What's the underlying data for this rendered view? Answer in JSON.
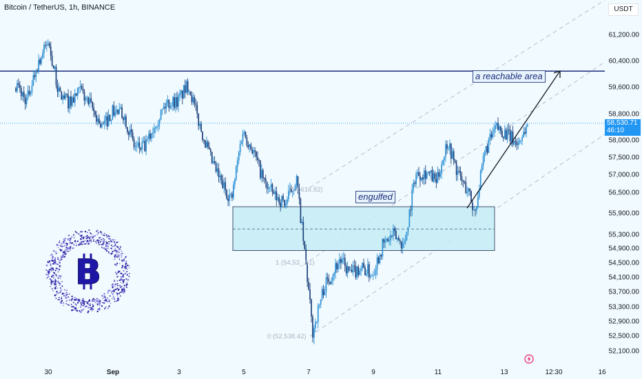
{
  "header": {
    "symbol_title": "Bitcoin / TetherUS, 1h, BINANCE",
    "currency": "USDT"
  },
  "price_axis": {
    "ticks": [
      "61,200.00",
      "60,400.00",
      "59,600.00",
      "58,800.00",
      "58,000.00",
      "57,500.00",
      "57,000.00",
      "56,500.00",
      "55,900.00",
      "55,300.00",
      "54,900.00",
      "54,500.00",
      "54,100.00",
      "53,700.00",
      "53,300.00",
      "52,900.00",
      "52,500.00",
      "52,100.00"
    ],
    "last_price": "58,530.71",
    "countdown": "46:10"
  },
  "time_axis": {
    "ticks": [
      "30",
      "Sep",
      "3",
      "5",
      "7",
      "9",
      "11",
      "13",
      "12:30",
      "16"
    ]
  },
  "annotations": {
    "reachable_area": "a reachable area",
    "engulfed": "engulfed",
    "fib_1618": "(54,616.82)",
    "fib_1": "1 (54,53_.51)",
    "fib_0": "0 (52,538.42)"
  },
  "colors": {
    "background": "#f1fafe",
    "candle": "#2a8fd4",
    "candle_dark": "#1b3f7a",
    "resistance_line": "#1a2b7a",
    "zone_fill": "#c5ecf6",
    "channel_line": "#b6bdc7",
    "last_price_tag": "#2196f3",
    "logo": "#2a1fa0"
  },
  "chart_data": {
    "type": "candlestick",
    "resistance_level": 60100,
    "demand_zone": {
      "low": 54850,
      "high": 56100,
      "mid": 55470
    },
    "last_price": 58530.71,
    "price_path": [
      {
        "t": "Aug 29 00:00",
        "p": 59700
      },
      {
        "t": "Aug 29 08:00",
        "p": 59200
      },
      {
        "t": "Aug 29 16:00",
        "p": 60300
      },
      {
        "t": "Aug 30 00:00",
        "p": 61000
      },
      {
        "t": "Aug 30 08:00",
        "p": 59400
      },
      {
        "t": "Aug 30 16:00",
        "p": 59150
      },
      {
        "t": "Aug 31 00:00",
        "p": 59500
      },
      {
        "t": "Aug 31 08:00",
        "p": 59000
      },
      {
        "t": "Aug 31 16:00",
        "p": 58400
      },
      {
        "t": "Sep 1 00:00",
        "p": 58900
      },
      {
        "t": "Sep 1 08:00",
        "p": 58800
      },
      {
        "t": "Sep 1 16:00",
        "p": 57800
      },
      {
        "t": "Sep 2 00:00",
        "p": 57800
      },
      {
        "t": "Sep 2 08:00",
        "p": 58600
      },
      {
        "t": "Sep 2 16:00",
        "p": 59150
      },
      {
        "t": "Sep 3 00:00",
        "p": 59200
      },
      {
        "t": "Sep 3 08:00",
        "p": 59700
      },
      {
        "t": "Sep 3 16:00",
        "p": 58500
      },
      {
        "t": "Sep 4 00:00",
        "p": 57500
      },
      {
        "t": "Sep 4 08:00",
        "p": 56800
      },
      {
        "t": "Sep 4 16:00",
        "p": 56300
      },
      {
        "t": "Sep 5 00:00",
        "p": 58300
      },
      {
        "t": "Sep 5 08:00",
        "p": 57700
      },
      {
        "t": "Sep 5 16:00",
        "p": 56800
      },
      {
        "t": "Sep 6 00:00",
        "p": 56400
      },
      {
        "t": "Sep 6 08:00",
        "p": 56200
      },
      {
        "t": "Sep 6 16:00",
        "p": 56900
      },
      {
        "t": "Sep 7 00:00",
        "p": 54100
      },
      {
        "t": "Sep 7 04:00",
        "p": 52600
      },
      {
        "t": "Sep 7 12:00",
        "p": 53800
      },
      {
        "t": "Sep 8 00:00",
        "p": 54600
      },
      {
        "t": "Sep 8 08:00",
        "p": 54200
      },
      {
        "t": "Sep 8 16:00",
        "p": 54400
      },
      {
        "t": "Sep 9 00:00",
        "p": 54200
      },
      {
        "t": "Sep 9 08:00",
        "p": 55000
      },
      {
        "t": "Sep 9 16:00",
        "p": 55300
      },
      {
        "t": "Sep 10 00:00",
        "p": 55000
      },
      {
        "t": "Sep 10 08:00",
        "p": 57000
      },
      {
        "t": "Sep 10 16:00",
        "p": 57100
      },
      {
        "t": "Sep 11 00:00",
        "p": 56800
      },
      {
        "t": "Sep 11 08:00",
        "p": 58000
      },
      {
        "t": "Sep 11 16:00",
        "p": 57000
      },
      {
        "t": "Sep 12 00:00",
        "p": 56500
      },
      {
        "t": "Sep 12 04:00",
        "p": 55900
      },
      {
        "t": "Sep 12 12:00",
        "p": 57700
      },
      {
        "t": "Sep 12 20:00",
        "p": 58400
      },
      {
        "t": "Sep 13 04:00",
        "p": 58200
      },
      {
        "t": "Sep 13 12:00",
        "p": 57900
      },
      {
        "t": "Sep 13 20:00",
        "p": 58530
      }
    ]
  }
}
